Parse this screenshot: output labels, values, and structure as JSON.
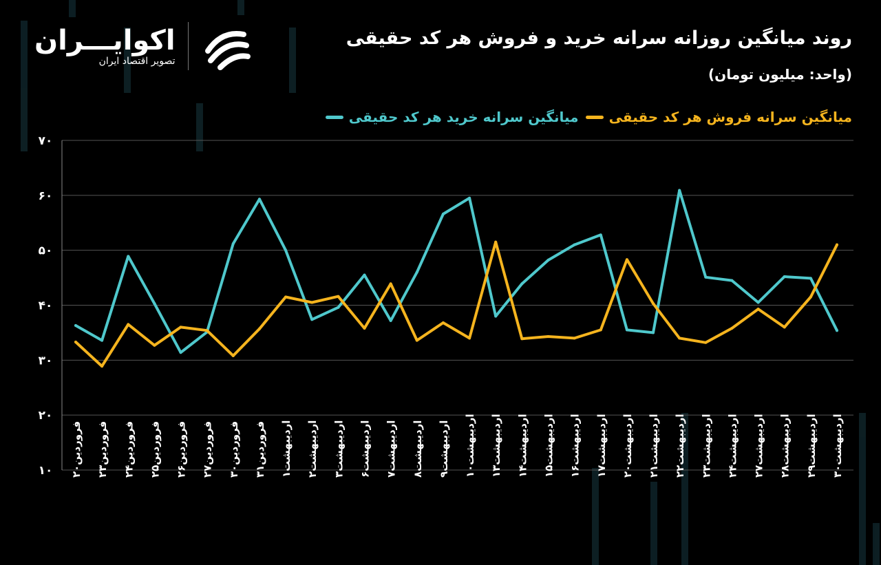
{
  "brand": {
    "name": "اکوایـــران",
    "tagline": "تصویر اقتصاد ایران"
  },
  "header": {
    "title": "روند میانگین روزانه سرانه خرید و فروش هر کد حقیقی",
    "unit": "(واحد: میلیون تومان)"
  },
  "colors": {
    "background": "#000000",
    "buy": "#4fc8cc",
    "sell": "#f5b41e",
    "grid": "#555555",
    "axis_text": "#ffffff"
  },
  "chart_data": {
    "type": "line",
    "legend_position": "top-right",
    "grid": true,
    "ylim": [
      10,
      70
    ],
    "yticks": [
      "۱۰",
      "۲۰",
      "۳۰",
      "۴۰",
      "۵۰",
      "۶۰",
      "۷۰"
    ],
    "ytick_values": [
      10,
      20,
      30,
      40,
      50,
      60,
      70
    ],
    "categories": [
      "فروردین۲۰",
      "فروردین۲۳",
      "فروردین۲۴",
      "فروردین۲۵",
      "فروردین۲۶",
      "فروردین۲۷",
      "فروردین۳۰",
      "فروردین۳۱",
      "اردیبهشت۱",
      "اردیبهشت۲",
      "اردیبهشت۳",
      "اردیبهشت۶",
      "اردیبهشت۷",
      "اردیبهشت۸",
      "اردیبهشت۹",
      "اردیبهشت۱۰",
      "اردیبهشت۱۳",
      "اردیبهشت۱۴",
      "اردیبهشت۱۵",
      "اردیبهشت۱۶",
      "اردیبهشت۱۷",
      "اردیبهشت۲۰",
      "اردیبهشت۲۱",
      "اردیبهشت۲۲",
      "اردیبهشت۲۳",
      "اردیبهشت۲۴",
      "اردیبهشت۲۷",
      "اردیبهشت۲۸",
      "اردیبهشت۲۹",
      "اردیبهشت۳۰"
    ],
    "series": [
      {
        "name": "میانگین سرانه خرید هر کد حقیقی",
        "color": "#4fc8cc",
        "values": [
          36.3,
          33.6,
          48.9,
          40.3,
          31.4,
          35.1,
          51.2,
          59.3,
          50.0,
          37.4,
          39.6,
          45.5,
          37.2,
          46.0,
          56.6,
          59.5,
          38.0,
          43.9,
          48.2,
          51.0,
          52.8,
          35.5,
          35.0,
          60.9,
          45.1,
          44.5,
          40.5,
          45.2,
          44.9,
          35.4
        ]
      },
      {
        "name": "میانگین سرانه فروش هر کد حقیقی",
        "color": "#f5b41e",
        "values": [
          33.3,
          28.9,
          36.5,
          32.7,
          36.0,
          35.4,
          30.8,
          35.7,
          41.5,
          40.5,
          41.6,
          35.8,
          43.9,
          33.6,
          36.8,
          34.0,
          51.5,
          33.9,
          34.3,
          34.0,
          35.5,
          48.3,
          40.3,
          34.0,
          33.2,
          35.8,
          39.3,
          36.0,
          41.5,
          51.0
        ]
      }
    ]
  }
}
